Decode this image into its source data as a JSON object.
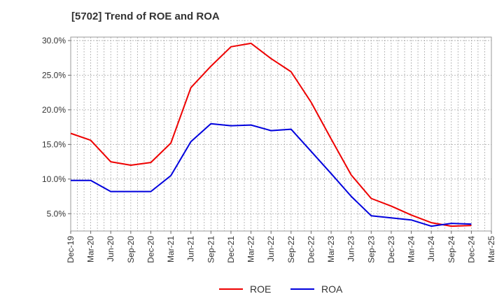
{
  "chart_data": {
    "type": "line",
    "title": "[5702]  Trend of ROE and ROA",
    "xlabel": "",
    "ylabel": "",
    "categories": [
      "Dec-19",
      "Mar-20",
      "Jun-20",
      "Sep-20",
      "Dec-20",
      "Mar-21",
      "Jun-21",
      "Sep-21",
      "Dec-21",
      "Mar-22",
      "Jun-22",
      "Sep-22",
      "Dec-22",
      "Mar-23",
      "Jun-23",
      "Sep-23",
      "Dec-23",
      "Mar-24",
      "Jun-24",
      "Sep-24",
      "Dec-24",
      "Mar-25"
    ],
    "ylim": [
      2.5,
      30.5
    ],
    "yticks": [
      5,
      10,
      15,
      20,
      25,
      30
    ],
    "ytick_labels": [
      "5.0%",
      "10.0%",
      "15.0%",
      "20.0%",
      "25.0%",
      "30.0%"
    ],
    "grid": true,
    "legend_position": "bottom",
    "series": [
      {
        "name": "ROE",
        "color": "#ee0000",
        "values": [
          16.6,
          15.6,
          12.5,
          12.0,
          12.4,
          15.2,
          23.2,
          26.3,
          29.1,
          29.6,
          27.4,
          25.5,
          21.1,
          15.8,
          10.6,
          7.2,
          6.1,
          4.8,
          3.7,
          3.2,
          3.3,
          null
        ]
      },
      {
        "name": "ROA",
        "color": "#0000dd",
        "values": [
          9.8,
          9.8,
          8.2,
          8.2,
          8.2,
          10.5,
          15.4,
          18.0,
          17.7,
          17.8,
          17.0,
          17.2,
          14.0,
          10.8,
          7.5,
          4.7,
          4.4,
          4.1,
          3.2,
          3.6,
          3.5,
          null
        ]
      }
    ]
  }
}
